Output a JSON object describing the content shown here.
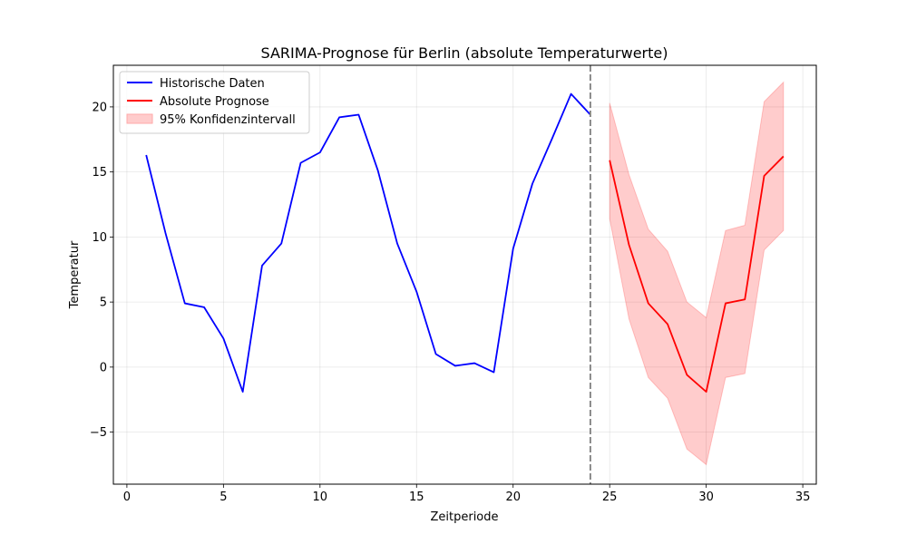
{
  "chart_data": {
    "type": "line",
    "title": "SARIMA-Prognose für Berlin (absolute Temperaturwerte)",
    "xlabel": "Zeitperiode",
    "ylabel": "Temperatur",
    "xlim": [
      -0.7,
      35.7
    ],
    "ylim": [
      -9,
      23.2
    ],
    "xticks": [
      0,
      5,
      10,
      15,
      20,
      25,
      30,
      35
    ],
    "yticks": [
      -5,
      0,
      5,
      10,
      15,
      20
    ],
    "xtick_labels": [
      "0",
      "5",
      "10",
      "15",
      "20",
      "25",
      "30",
      "35"
    ],
    "ytick_labels": [
      "−5",
      "0",
      "5",
      "10",
      "15",
      "20"
    ],
    "grid": true,
    "legend_position": "top-left",
    "vline_x": 24,
    "series": [
      {
        "name": "Historische Daten",
        "color": "#0000ff",
        "x": [
          1,
          2,
          3,
          4,
          5,
          6,
          7,
          8,
          9,
          10,
          11,
          12,
          13,
          14,
          15,
          16,
          17,
          18,
          19,
          20,
          21,
          22,
          23,
          24
        ],
        "values": [
          16.3,
          10.3,
          4.9,
          4.6,
          2.2,
          -1.9,
          7.8,
          9.5,
          15.7,
          16.5,
          19.2,
          19.4,
          15.1,
          9.5,
          5.8,
          1.0,
          0.1,
          0.3,
          -0.4,
          9.1,
          14.1,
          17.5,
          21.0,
          19.4
        ]
      },
      {
        "name": "Absolute Prognose",
        "color": "#ff0000",
        "x": [
          25,
          26,
          27,
          28,
          29,
          30,
          31,
          32,
          33,
          34
        ],
        "values": [
          15.9,
          9.4,
          4.9,
          3.3,
          -0.6,
          -1.9,
          4.9,
          5.2,
          14.7,
          16.2
        ]
      }
    ],
    "band": {
      "name": "95% Konfidenzintervall",
      "color": "#ffcccc",
      "x": [
        25,
        26,
        27,
        28,
        29,
        30,
        31,
        32,
        33,
        34
      ],
      "lower": [
        11.4,
        3.7,
        -0.8,
        -2.4,
        -6.3,
        -7.5,
        -0.8,
        -0.5,
        9.0,
        10.5
      ],
      "upper": [
        20.3,
        14.8,
        10.6,
        8.9,
        5.0,
        3.8,
        10.5,
        10.9,
        20.4,
        21.9
      ]
    }
  }
}
